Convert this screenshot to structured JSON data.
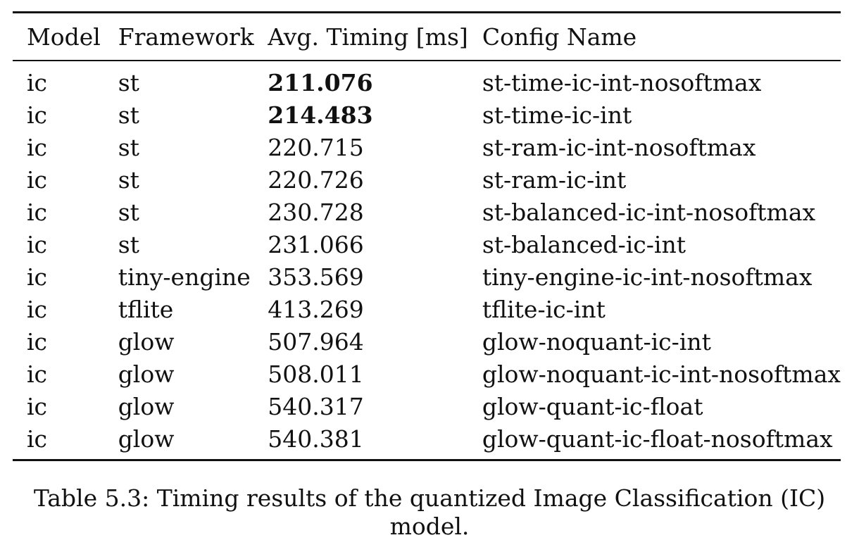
{
  "table": {
    "headers": [
      "Model",
      "Framework",
      "Avg. Timing [ms]",
      "Config Name"
    ],
    "rows": [
      {
        "model": "ic",
        "framework": "st",
        "timing": "211.076",
        "config": "st-time-ic-int-nosoftmax",
        "bold": true
      },
      {
        "model": "ic",
        "framework": "st",
        "timing": "214.483",
        "config": "st-time-ic-int",
        "bold": true
      },
      {
        "model": "ic",
        "framework": "st",
        "timing": "220.715",
        "config": "st-ram-ic-int-nosoftmax",
        "bold": false
      },
      {
        "model": "ic",
        "framework": "st",
        "timing": "220.726",
        "config": "st-ram-ic-int",
        "bold": false
      },
      {
        "model": "ic",
        "framework": "st",
        "timing": "230.728",
        "config": "st-balanced-ic-int-nosoftmax",
        "bold": false
      },
      {
        "model": "ic",
        "framework": "st",
        "timing": "231.066",
        "config": "st-balanced-ic-int",
        "bold": false
      },
      {
        "model": "ic",
        "framework": "tiny-engine",
        "timing": "353.569",
        "config": "tiny-engine-ic-int-nosoftmax",
        "bold": false
      },
      {
        "model": "ic",
        "framework": "tflite",
        "timing": "413.269",
        "config": "tflite-ic-int",
        "bold": false
      },
      {
        "model": "ic",
        "framework": "glow",
        "timing": "507.964",
        "config": "glow-noquant-ic-int",
        "bold": false
      },
      {
        "model": "ic",
        "framework": "glow",
        "timing": "508.011",
        "config": "glow-noquant-ic-int-nosoftmax",
        "bold": false
      },
      {
        "model": "ic",
        "framework": "glow",
        "timing": "540.317",
        "config": "glow-quant-ic-float",
        "bold": false
      },
      {
        "model": "ic",
        "framework": "glow",
        "timing": "540.381",
        "config": "glow-quant-ic-float-nosoftmax",
        "bold": false
      }
    ]
  },
  "caption": "Table 5.3: Timing results of the quantized Image Classification (IC) model."
}
